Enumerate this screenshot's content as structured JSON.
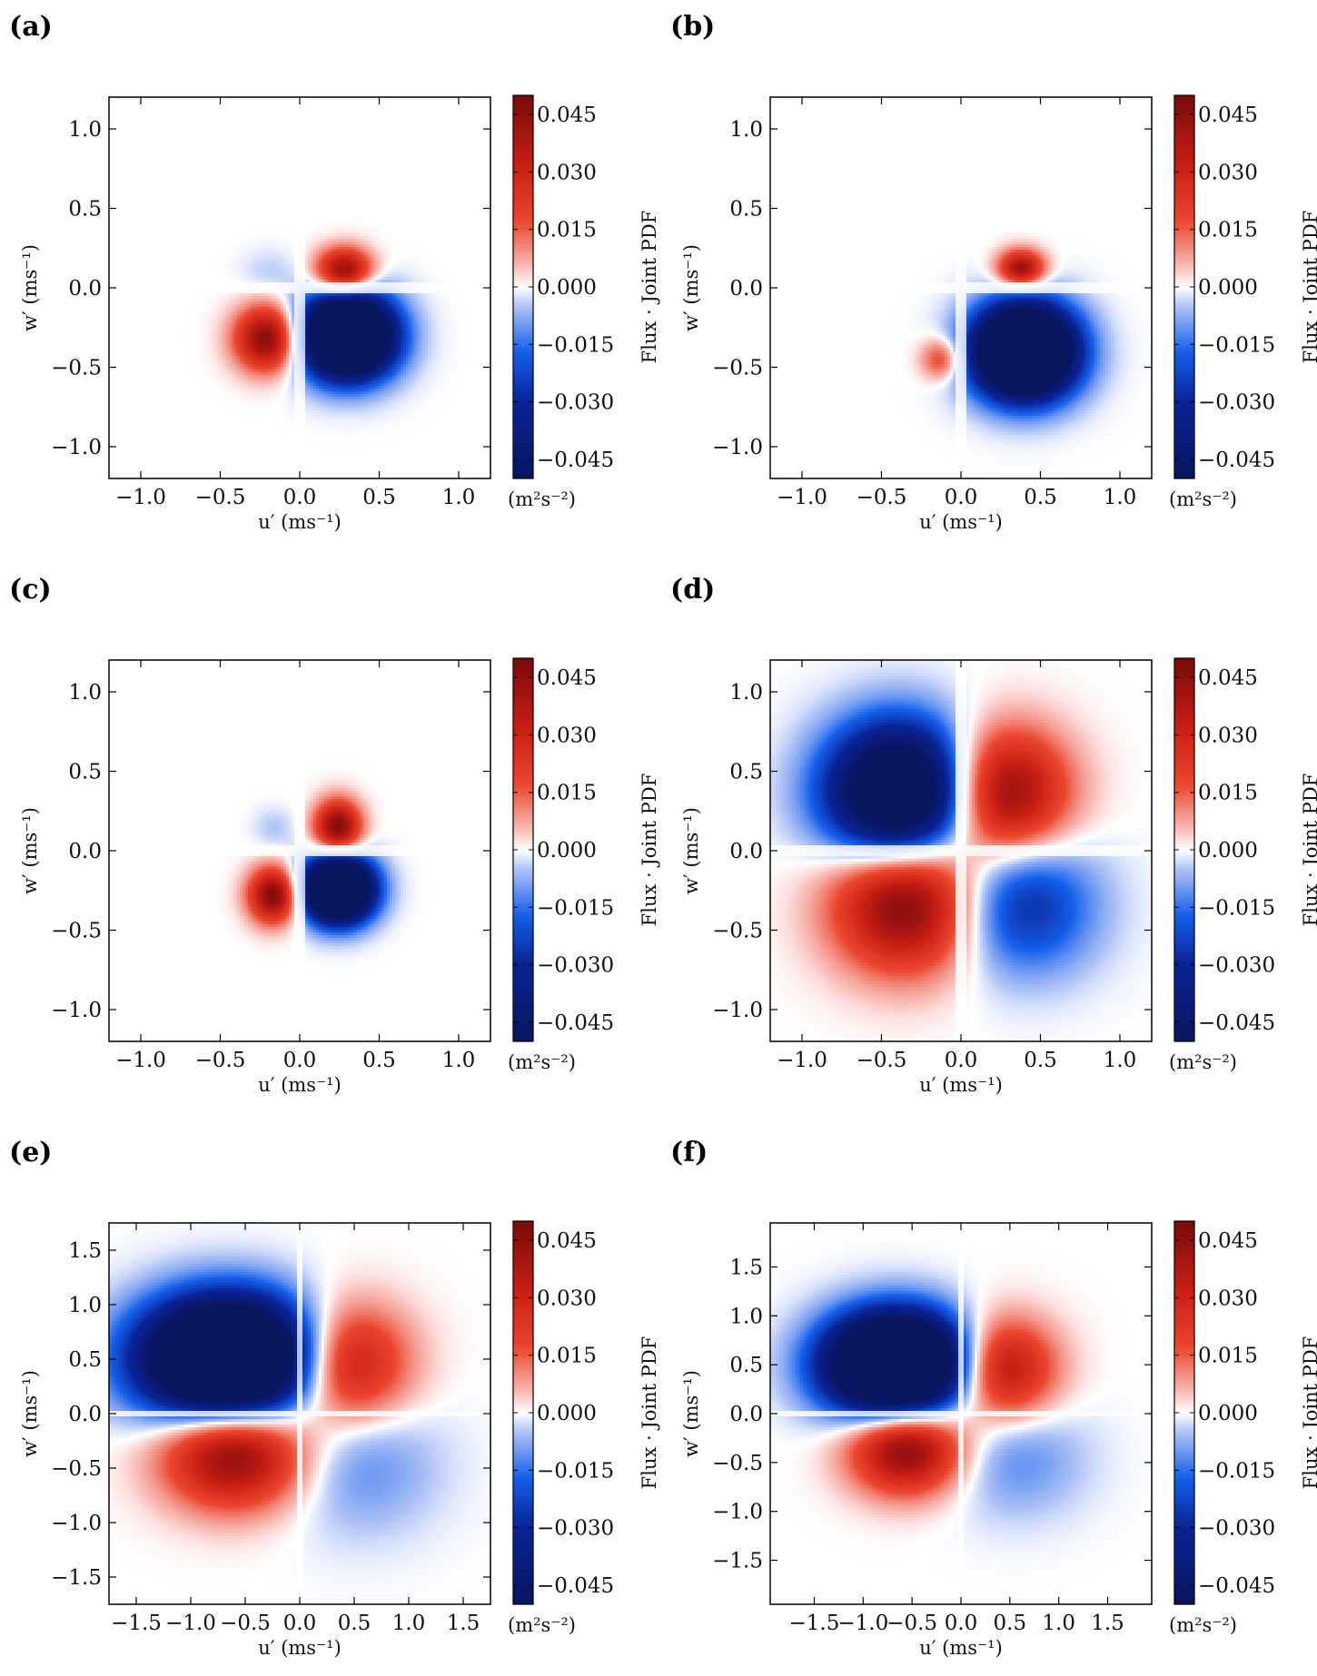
{
  "chart_data": [
    {
      "type": "heatmap",
      "panel_label": "(a)",
      "xlabel": "u′ (ms⁻¹)",
      "ylabel": "w′ (ms⁻¹)",
      "xlim": [
        -1.2,
        1.2
      ],
      "ylim": [
        -1.2,
        1.2
      ],
      "xticks": [
        "−1.0",
        "−0.5",
        "0.0",
        "0.5",
        "1.0"
      ],
      "xtick_values": [
        -1.0,
        -0.5,
        0.0,
        0.5,
        1.0
      ],
      "yticks": [
        "−1.0",
        "−0.5",
        "0.0",
        "0.5",
        "1.0"
      ],
      "ytick_values": [
        -1.0,
        -0.5,
        0.0,
        0.5,
        1.0
      ],
      "colorbar": {
        "label": "Flux · Joint PDF",
        "unit": "(m²s⁻²)",
        "ticks": [
          "−0.045",
          "−0.030",
          "−0.015",
          "0.000",
          "0.015",
          "0.030",
          "0.045"
        ],
        "tick_values": [
          -0.045,
          -0.03,
          -0.015,
          0.0,
          0.015,
          0.03,
          0.045
        ],
        "range": [
          -0.05,
          0.05
        ]
      },
      "blobs": [
        {
          "u": 0.3,
          "w": -0.3,
          "su": 0.2,
          "sw": 0.18,
          "amp": -0.12
        },
        {
          "u": -0.2,
          "w": -0.32,
          "su": 0.14,
          "sw": 0.14,
          "amp": 0.05
        },
        {
          "u": 0.28,
          "w": 0.1,
          "su": 0.12,
          "sw": 0.1,
          "amp": 0.05
        },
        {
          "u": -0.2,
          "w": 0.1,
          "su": 0.12,
          "sw": 0.1,
          "amp": -0.004
        }
      ]
    },
    {
      "type": "heatmap",
      "panel_label": "(b)",
      "xlabel": "u′ (ms⁻¹)",
      "ylabel": "w′ (ms⁻¹)",
      "xlim": [
        -1.2,
        1.2
      ],
      "ylim": [
        -1.2,
        1.2
      ],
      "xticks": [
        "−1.0",
        "−0.5",
        "0.0",
        "0.5",
        "1.0"
      ],
      "xtick_values": [
        -1.0,
        -0.5,
        0.0,
        0.5,
        1.0
      ],
      "yticks": [
        "−1.0",
        "−0.5",
        "0.0",
        "0.5",
        "1.0"
      ],
      "ytick_values": [
        -1.0,
        -0.5,
        0.0,
        0.5,
        1.0
      ],
      "colorbar": {
        "label": "Flux · Joint PDF",
        "unit": "(m²s⁻²)",
        "ticks": [
          "−0.045",
          "−0.030",
          "−0.015",
          "0.000",
          "0.015",
          "0.030",
          "0.045"
        ],
        "tick_values": [
          -0.045,
          -0.03,
          -0.015,
          0.0,
          0.015,
          0.03,
          0.045
        ],
        "range": [
          -0.05,
          0.05
        ]
      },
      "blobs": [
        {
          "u": 0.4,
          "w": -0.4,
          "su": 0.22,
          "sw": 0.2,
          "amp": -0.12
        },
        {
          "u": -0.12,
          "w": -0.45,
          "su": 0.09,
          "sw": 0.09,
          "amp": 0.022
        },
        {
          "u": 0.38,
          "w": 0.12,
          "su": 0.1,
          "sw": 0.08,
          "amp": 0.045
        }
      ]
    },
    {
      "type": "heatmap",
      "panel_label": "(c)",
      "xlabel": "u′ (ms⁻¹)",
      "ylabel": "w′ (ms⁻¹)",
      "xlim": [
        -1.2,
        1.2
      ],
      "ylim": [
        -1.2,
        1.2
      ],
      "xticks": [
        "−1.0",
        "−0.5",
        "0.0",
        "0.5",
        "1.0"
      ],
      "xtick_values": [
        -1.0,
        -0.5,
        0.0,
        0.5,
        1.0
      ],
      "yticks": [
        "−1.0",
        "−0.5",
        "0.0",
        "0.5",
        "1.0"
      ],
      "ytick_values": [
        -1.0,
        -0.5,
        0.0,
        0.5,
        1.0
      ],
      "colorbar": {
        "label": "Flux · Joint PDF",
        "unit": "(m²s⁻²)",
        "ticks": [
          "−0.045",
          "−0.030",
          "−0.015",
          "0.000",
          "0.015",
          "0.030",
          "0.045"
        ],
        "tick_values": [
          -0.045,
          -0.03,
          -0.015,
          0.0,
          0.015,
          0.03,
          0.045
        ],
        "range": [
          -0.05,
          0.05
        ]
      },
      "blobs": [
        {
          "u": 0.24,
          "w": -0.24,
          "su": 0.15,
          "sw": 0.14,
          "amp": -0.12
        },
        {
          "u": -0.16,
          "w": -0.28,
          "su": 0.11,
          "sw": 0.12,
          "amp": 0.05
        },
        {
          "u": 0.24,
          "w": 0.14,
          "su": 0.1,
          "sw": 0.12,
          "amp": 0.05
        },
        {
          "u": -0.16,
          "w": 0.14,
          "su": 0.09,
          "sw": 0.09,
          "amp": -0.005
        }
      ]
    },
    {
      "type": "heatmap",
      "panel_label": "(d)",
      "xlabel": "u′ (ms⁻¹)",
      "ylabel": "w′ (ms⁻¹)",
      "xlim": [
        -1.2,
        1.2
      ],
      "ylim": [
        -1.2,
        1.2
      ],
      "xticks": [
        "−1.0",
        "−0.5",
        "0.0",
        "0.5",
        "1.0"
      ],
      "xtick_values": [
        -1.0,
        -0.5,
        0.0,
        0.5,
        1.0
      ],
      "yticks": [
        "−1.0",
        "−0.5",
        "0.0",
        "0.5",
        "1.0"
      ],
      "ytick_values": [
        -1.0,
        -0.5,
        0.0,
        0.5,
        1.0
      ],
      "colorbar": {
        "label": "Flux · Joint PDF",
        "unit": "(m²s⁻²)",
        "ticks": [
          "−0.045",
          "−0.030",
          "−0.015",
          "0.000",
          "0.015",
          "0.030",
          "0.045"
        ],
        "tick_values": [
          -0.045,
          -0.03,
          -0.015,
          0.0,
          0.015,
          0.03,
          0.045
        ],
        "range": [
          -0.05,
          0.05
        ]
      },
      "blobs": [
        {
          "u": -0.38,
          "w": 0.36,
          "su": 0.32,
          "sw": 0.3,
          "amp": -0.085
        },
        {
          "u": 0.26,
          "w": 0.36,
          "su": 0.28,
          "sw": 0.28,
          "amp": 0.05
        },
        {
          "u": -0.34,
          "w": -0.32,
          "su": 0.32,
          "sw": 0.3,
          "amp": 0.052
        },
        {
          "u": 0.38,
          "w": -0.34,
          "su": 0.32,
          "sw": 0.3,
          "amp": -0.03
        }
      ]
    },
    {
      "type": "heatmap",
      "panel_label": "(e)",
      "xlabel": "u′ (ms⁻¹)",
      "ylabel": "w′ (ms⁻¹)",
      "xlim": [
        -1.75,
        1.75
      ],
      "ylim": [
        -1.75,
        1.75
      ],
      "xticks": [
        "−1.5",
        "−1.0",
        "−0.5",
        "0.0",
        "0.5",
        "1.0",
        "1.5"
      ],
      "xtick_values": [
        -1.5,
        -1.0,
        -0.5,
        0.0,
        0.5,
        1.0,
        1.5
      ],
      "yticks": [
        "−1.5",
        "−1.0",
        "−0.5",
        "0.0",
        "0.5",
        "1.0",
        "1.5"
      ],
      "ytick_values": [
        -1.5,
        -1.0,
        -0.5,
        0.0,
        0.5,
        1.0,
        1.5
      ],
      "colorbar": {
        "label": "Flux · Joint PDF",
        "unit": "(m²s⁻²)",
        "ticks": [
          "−0.045",
          "−0.030",
          "−0.015",
          "0.000",
          "0.015",
          "0.030",
          "0.045"
        ],
        "tick_values": [
          -0.045,
          -0.03,
          -0.015,
          0.0,
          0.015,
          0.03,
          0.045
        ],
        "range": [
          -0.05,
          0.05
        ]
      },
      "blobs": [
        {
          "u": -0.65,
          "w": 0.5,
          "su": 0.55,
          "sw": 0.38,
          "amp": -0.12
        },
        {
          "u": 0.4,
          "w": 0.45,
          "su": 0.4,
          "sw": 0.38,
          "amp": 0.042
        },
        {
          "u": -0.6,
          "w": -0.35,
          "su": 0.45,
          "sw": 0.35,
          "amp": 0.05
        },
        {
          "u": 0.55,
          "w": -0.45,
          "su": 0.5,
          "sw": 0.45,
          "amp": -0.012
        }
      ]
    },
    {
      "type": "heatmap",
      "panel_label": "(f)",
      "xlabel": "u′ (ms⁻¹)",
      "ylabel": "w′ (ms⁻¹)",
      "xlim": [
        -1.95,
        1.95
      ],
      "ylim": [
        -1.95,
        1.95
      ],
      "xticks": [
        "−1.5",
        "−1.0",
        "−0.5",
        "0.0",
        "0.5",
        "1.0",
        "1.5"
      ],
      "xtick_values": [
        -1.5,
        -1.0,
        -0.5,
        0.0,
        0.5,
        1.0,
        1.5
      ],
      "yticks": [
        "−1.5",
        "−1.0",
        "−0.5",
        "0.0",
        "0.5",
        "1.0",
        "1.5"
      ],
      "ytick_values": [
        -1.5,
        -1.0,
        -0.5,
        0.0,
        0.5,
        1.0,
        1.5
      ],
      "colorbar": {
        "label": "Flux · Joint PDF",
        "unit": "(m²s⁻²)",
        "ticks": [
          "−0.045",
          "−0.030",
          "−0.015",
          "0.000",
          "0.015",
          "0.030",
          "0.045"
        ],
        "tick_values": [
          -0.045,
          -0.03,
          -0.015,
          0.0,
          0.015,
          0.03,
          0.045
        ],
        "range": [
          -0.05,
          0.05
        ]
      },
      "blobs": [
        {
          "u": -0.65,
          "w": 0.5,
          "su": 0.5,
          "sw": 0.36,
          "amp": -0.12
        },
        {
          "u": 0.4,
          "w": 0.45,
          "su": 0.38,
          "sw": 0.36,
          "amp": 0.042
        },
        {
          "u": -0.55,
          "w": -0.35,
          "su": 0.4,
          "sw": 0.32,
          "amp": 0.05
        },
        {
          "u": 0.55,
          "w": -0.45,
          "su": 0.5,
          "sw": 0.42,
          "amp": -0.012
        }
      ]
    }
  ]
}
